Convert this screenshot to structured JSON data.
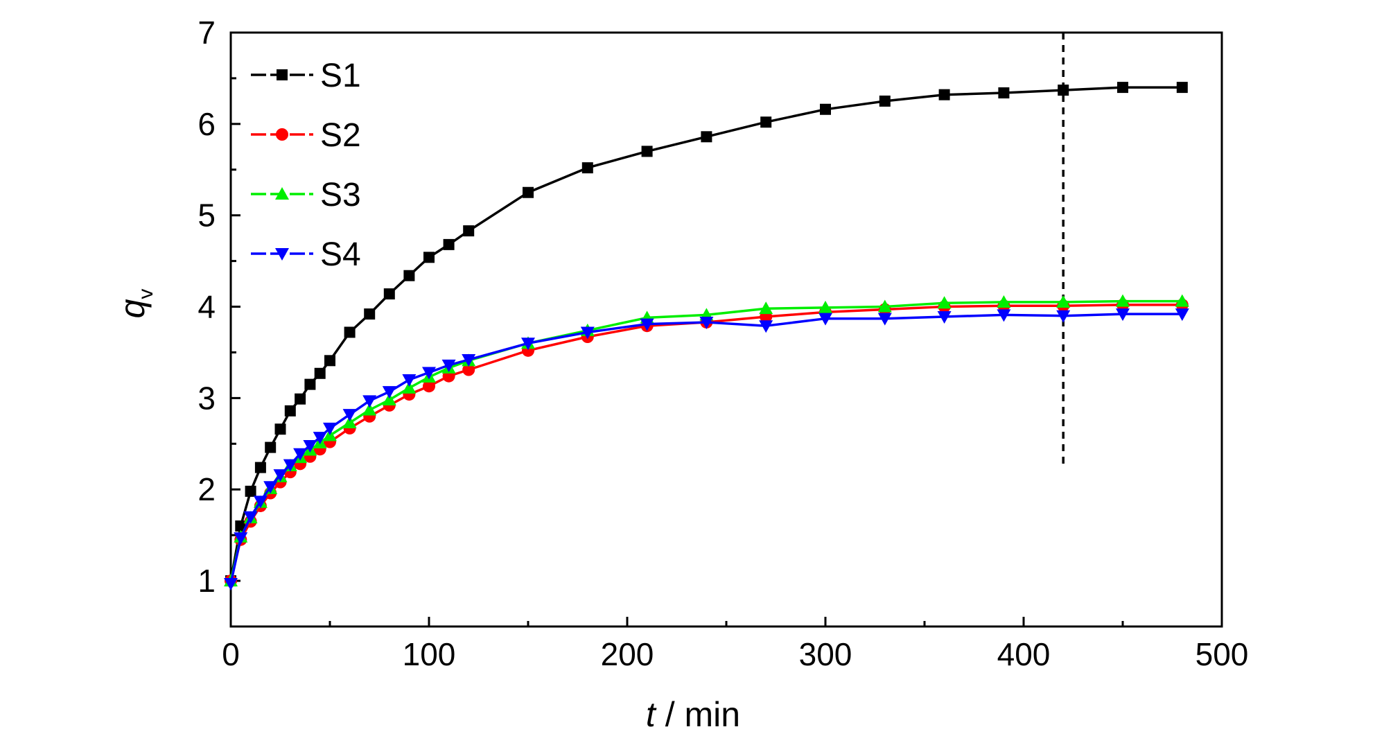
{
  "chart_data": {
    "type": "line",
    "xlabel_var": "t",
    "xlabel_unit": " / min",
    "ylabel_var": "q",
    "ylabel_sub": "v",
    "xlim": [
      0,
      500
    ],
    "ylim": [
      0.5,
      7
    ],
    "xticks": [
      0,
      100,
      200,
      300,
      400,
      500
    ],
    "yticks": [
      1,
      2,
      3,
      4,
      5,
      6,
      7
    ],
    "grid": false,
    "legend_position": "top-left",
    "vline": {
      "x": 420,
      "y_from": 2.25,
      "y_to": 7
    },
    "series": [
      {
        "name": "S1",
        "color": "#000000",
        "marker": "square",
        "x": [
          0,
          5,
          10,
          15,
          20,
          25,
          30,
          35,
          40,
          45,
          50,
          60,
          70,
          80,
          90,
          100,
          110,
          120,
          150,
          180,
          210,
          240,
          270,
          300,
          330,
          360,
          390,
          420,
          450,
          480
        ],
        "y": [
          1.0,
          1.6,
          1.98,
          2.24,
          2.46,
          2.66,
          2.86,
          2.99,
          3.15,
          3.27,
          3.41,
          3.72,
          3.92,
          4.14,
          4.34,
          4.54,
          4.68,
          4.83,
          5.25,
          5.52,
          5.7,
          5.86,
          6.02,
          6.16,
          6.25,
          6.32,
          6.34,
          6.37,
          6.4,
          6.4
        ]
      },
      {
        "name": "S2",
        "color": "#ff0000",
        "marker": "circle",
        "x": [
          0,
          5,
          10,
          15,
          20,
          25,
          30,
          35,
          40,
          45,
          50,
          60,
          70,
          80,
          90,
          100,
          110,
          120,
          150,
          180,
          210,
          240,
          270,
          300,
          330,
          360,
          390,
          420,
          450,
          480
        ],
        "y": [
          1.0,
          1.45,
          1.65,
          1.82,
          1.96,
          2.08,
          2.19,
          2.28,
          2.36,
          2.44,
          2.52,
          2.67,
          2.8,
          2.92,
          3.04,
          3.13,
          3.24,
          3.31,
          3.52,
          3.67,
          3.79,
          3.83,
          3.89,
          3.94,
          3.97,
          4.0,
          4.01,
          4.01,
          4.02,
          4.02
        ]
      },
      {
        "name": "S3",
        "color": "#00ee00",
        "marker": "triangle-up",
        "x": [
          0,
          5,
          10,
          15,
          20,
          25,
          30,
          35,
          40,
          45,
          50,
          60,
          70,
          80,
          90,
          100,
          110,
          120,
          150,
          180,
          210,
          240,
          270,
          300,
          330,
          360,
          390,
          420,
          450,
          480
        ],
        "y": [
          1.0,
          1.48,
          1.69,
          1.86,
          2.01,
          2.14,
          2.26,
          2.35,
          2.43,
          2.51,
          2.59,
          2.73,
          2.87,
          2.98,
          3.11,
          3.23,
          3.33,
          3.41,
          3.6,
          3.74,
          3.88,
          3.91,
          3.98,
          3.99,
          4.0,
          4.04,
          4.05,
          4.05,
          4.06,
          4.06
        ]
      },
      {
        "name": "S4",
        "color": "#0000ff",
        "marker": "triangle-down",
        "x": [
          0,
          5,
          10,
          15,
          20,
          25,
          30,
          35,
          40,
          45,
          50,
          60,
          70,
          80,
          90,
          100,
          110,
          120,
          150,
          180,
          210,
          240,
          270,
          300,
          330,
          360,
          390,
          420,
          450,
          480
        ],
        "y": [
          0.97,
          1.47,
          1.7,
          1.87,
          2.03,
          2.16,
          2.27,
          2.39,
          2.48,
          2.57,
          2.67,
          2.82,
          2.97,
          3.07,
          3.2,
          3.28,
          3.36,
          3.42,
          3.6,
          3.72,
          3.81,
          3.83,
          3.79,
          3.87,
          3.87,
          3.89,
          3.91,
          3.9,
          3.92,
          3.92
        ]
      }
    ]
  }
}
